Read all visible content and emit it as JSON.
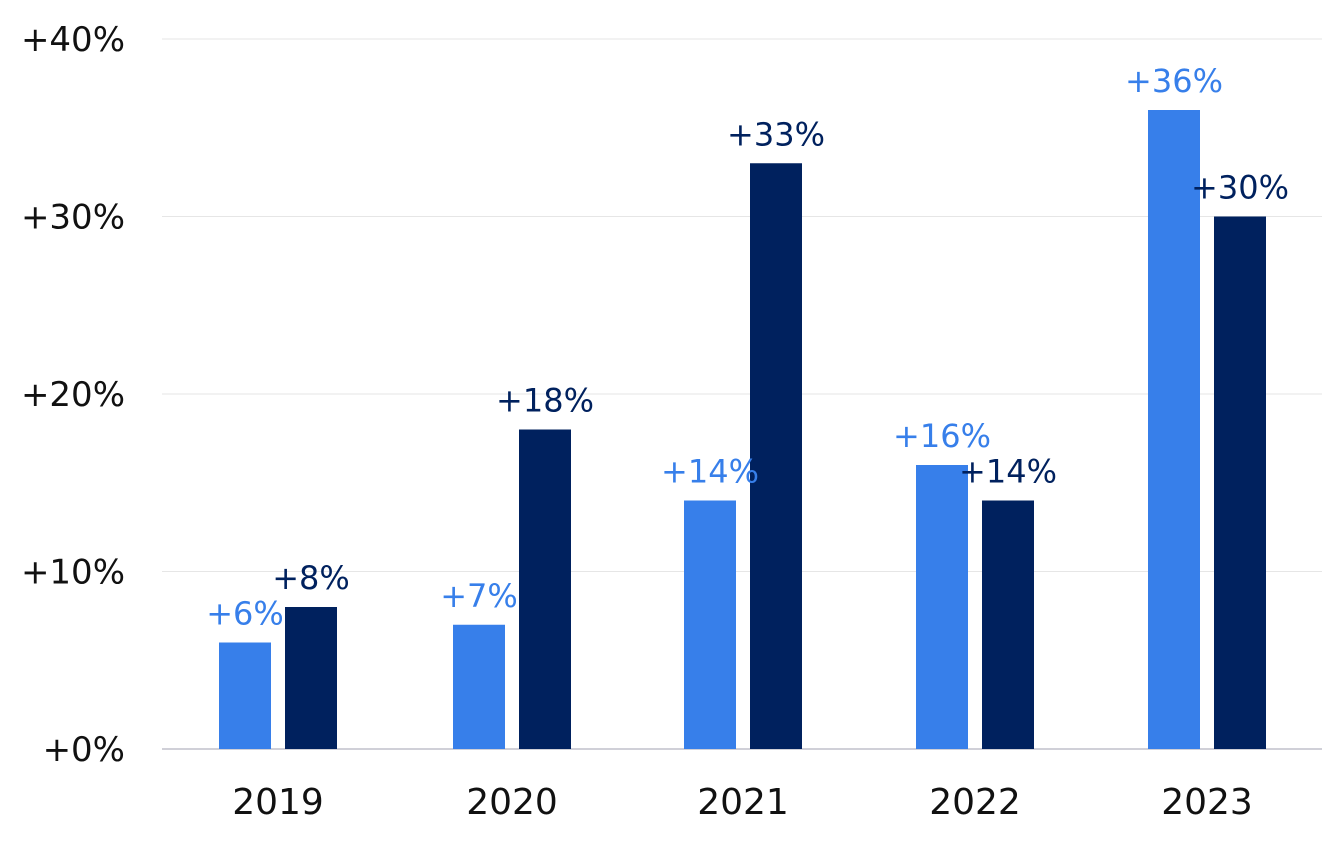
{
  "chart_data": {
    "type": "bar",
    "categories": [
      "2019",
      "2020",
      "2021",
      "2022",
      "2023"
    ],
    "series": [
      {
        "values": [
          6,
          7,
          14,
          16,
          36
        ],
        "labels": [
          "+6%",
          "+7%",
          "+14%",
          "+16%",
          "+36%"
        ],
        "color": "#377fea"
      },
      {
        "values": [
          8,
          18,
          33,
          14,
          30
        ],
        "labels": [
          "+8%",
          "+18%",
          "+33%",
          "+14%",
          "+30%"
        ],
        "color": "#00215e"
      }
    ],
    "ylim": [
      0,
      40
    ],
    "yticks": [
      0,
      10,
      20,
      30,
      40
    ],
    "ytick_labels": [
      "+0%",
      "+10%",
      "+20%",
      "+30%",
      "+40%"
    ],
    "grid": true,
    "gridline_color": "#e6e6e6",
    "axis_color": "#d0d0d8"
  }
}
